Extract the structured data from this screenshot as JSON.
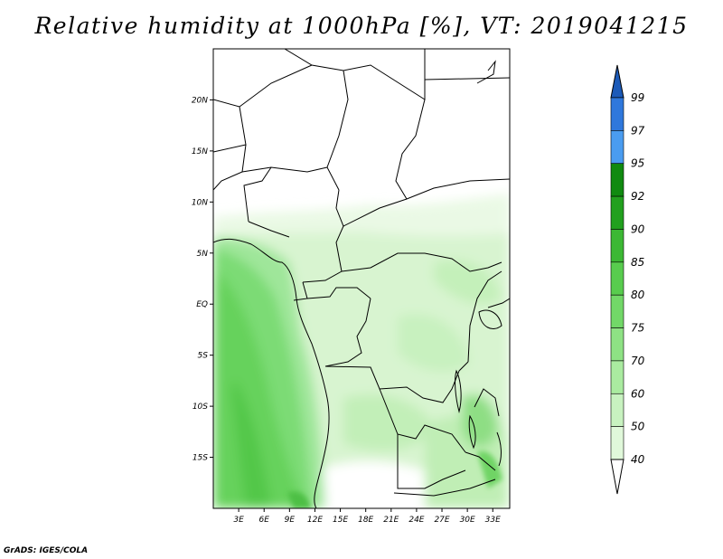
{
  "title": "Relative humidity at 1000hPa [%], VT: 2019041215",
  "credit": "GrADS: IGES/COLA",
  "map": {
    "lat_labels": [
      "20N",
      "15N",
      "10N",
      "5N",
      "EQ",
      "5S",
      "10S",
      "15S"
    ],
    "lon_labels": [
      "3E",
      "6E",
      "9E",
      "12E",
      "15E",
      "18E",
      "21E",
      "24E",
      "27E",
      "30E",
      "33E"
    ],
    "lat_values": [
      20,
      15,
      10,
      5,
      0,
      -5,
      -10,
      -15
    ],
    "lon_values": [
      3,
      6,
      9,
      12,
      15,
      18,
      21,
      24,
      27,
      30,
      33
    ],
    "extent": {
      "lon_min": 0,
      "lon_max": 35,
      "lat_min": -20,
      "lat_max": 25
    }
  },
  "colorbar": {
    "levels": [
      "40",
      "50",
      "60",
      "70",
      "75",
      "80",
      "85",
      "90",
      "92",
      "95",
      "97",
      "99"
    ],
    "colors": [
      "#f2fcf0",
      "#e0f8da",
      "#c8f2c0",
      "#aaeba0",
      "#8ee284",
      "#72d868",
      "#58cc4e",
      "#3cb834",
      "#22a01e",
      "#108a10",
      "#4a9cf0",
      "#2f78dc",
      "#1c5ab8"
    ]
  }
}
